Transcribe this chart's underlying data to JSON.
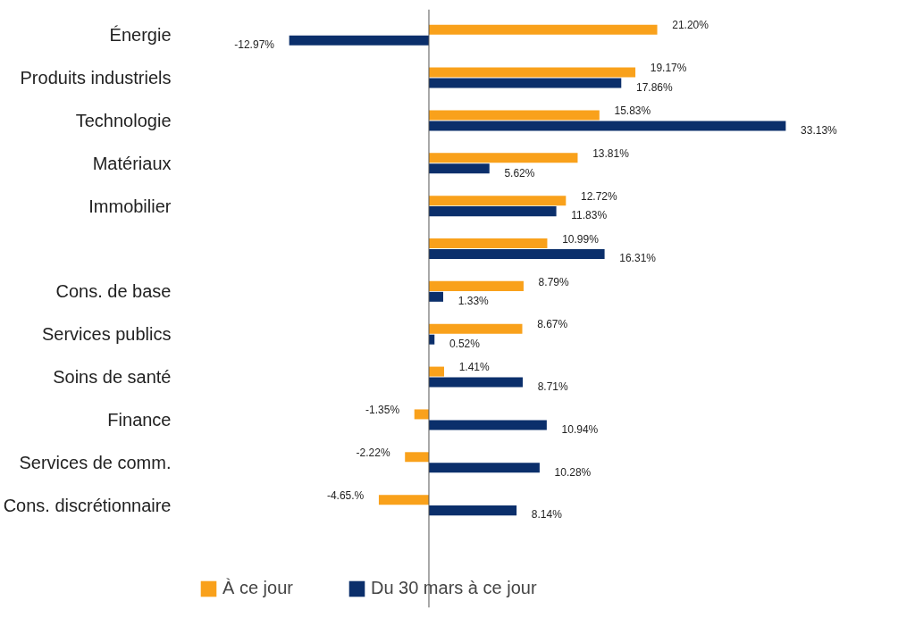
{
  "chart_data": {
    "type": "bar",
    "orientation": "horizontal",
    "categories": [
      "Énergie",
      "Produits industriels",
      "Technologie",
      "Matériaux",
      "Immobilier",
      null,
      "Cons. de base",
      "Services publics",
      "Soins de santé",
      "Finance",
      "Services de comm.",
      "Cons. discrétionnaire"
    ],
    "series": [
      {
        "name": "À ce jour",
        "color": "#f9a11b",
        "values": [
          21.2,
          19.17,
          15.83,
          13.81,
          12.72,
          10.99,
          8.79,
          8.67,
          1.41,
          -1.35,
          -2.22,
          -4.65
        ],
        "value_labels": [
          "21.20%",
          "19.17%",
          "15.83%",
          "13.81%",
          "12.72%",
          "10.99%",
          "8.79%",
          "8.67%",
          "1.41%",
          "-1.35%",
          "-2.22%",
          "-4.65.%"
        ]
      },
      {
        "name": "Du 30 mars à ce jour",
        "color": "#0b2f6b",
        "values": [
          -12.97,
          17.86,
          33.13,
          5.62,
          11.83,
          16.31,
          1.33,
          0.52,
          8.71,
          10.94,
          10.28,
          8.14
        ],
        "value_labels": [
          "-12.97%",
          "17.86%",
          "33.13%",
          "5.62%",
          "11.83%",
          "16.31%",
          "1.33%",
          "0.52%",
          "8.71%",
          "10.94%",
          "10.28%",
          "8.14%"
        ]
      }
    ],
    "legend": "bottom left",
    "grid": false
  }
}
